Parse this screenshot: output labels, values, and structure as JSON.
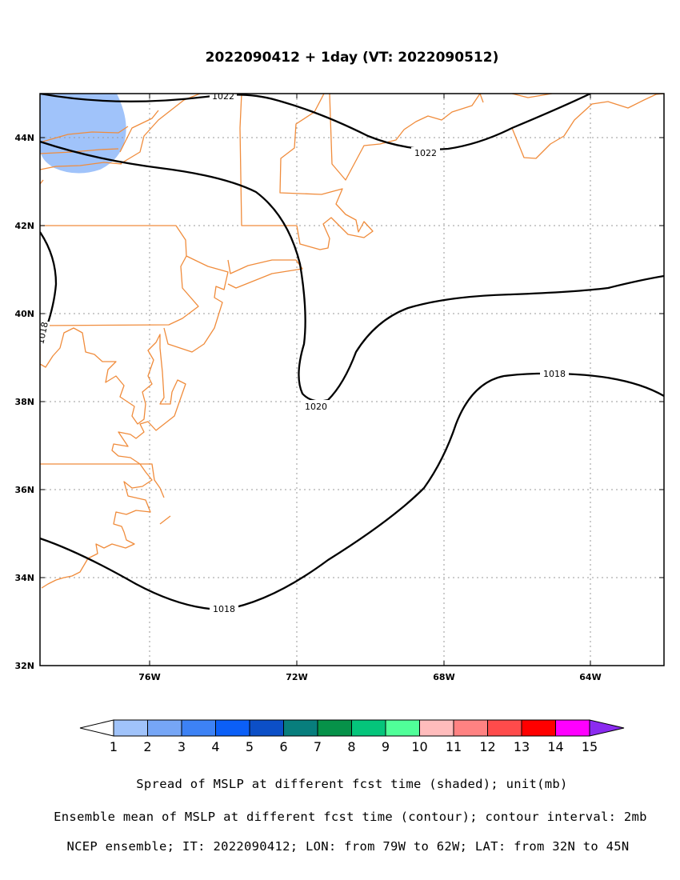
{
  "chart_data": {
    "type": "contour",
    "title": "2022090412 + 1day (VT: 2022090512)",
    "region": {
      "lon": [
        -79,
        -62
      ],
      "lat": [
        32,
        45
      ]
    },
    "x_ticks": [
      "76W",
      "72W",
      "68W",
      "64W"
    ],
    "y_ticks": [
      "32N",
      "34N",
      "36N",
      "38N",
      "40N",
      "42N",
      "44N"
    ],
    "grid": true,
    "contour_lines": [
      {
        "level": "1022",
        "label": "1022"
      },
      {
        "level": "1020",
        "label": "1020"
      },
      {
        "level": "1018",
        "label": "1018"
      }
    ],
    "shaded_regions": [
      {
        "value": "1-2",
        "region": "Lake Ontario area",
        "color": "#a0c3fa"
      }
    ],
    "colorbar": {
      "labels": [
        "1",
        "2",
        "3",
        "4",
        "5",
        "6",
        "7",
        "8",
        "9",
        "10",
        "11",
        "12",
        "13",
        "14",
        "15"
      ],
      "colors": [
        "#ffffff",
        "#a0c3fa",
        "#76a6f6",
        "#3d82f5",
        "#0b5ff7",
        "#0c4fc7",
        "#087e7d",
        "#069249",
        "#05c57b",
        "#50ff99",
        "#ffbcbc",
        "#ff8282",
        "#ff4b4b",
        "#ff0000",
        "#ff00ff",
        "#8b2bf0"
      ]
    },
    "captions": [
      "Spread of MSLP at different fcst time (shaded); unit(mb)",
      "Ensemble mean of MSLP at different fcst time (contour); contour interval: 2mb",
      "NCEP ensemble; IT: 2022090412; LON: from 79W to 62W; LAT: from 32N to 45N"
    ]
  }
}
